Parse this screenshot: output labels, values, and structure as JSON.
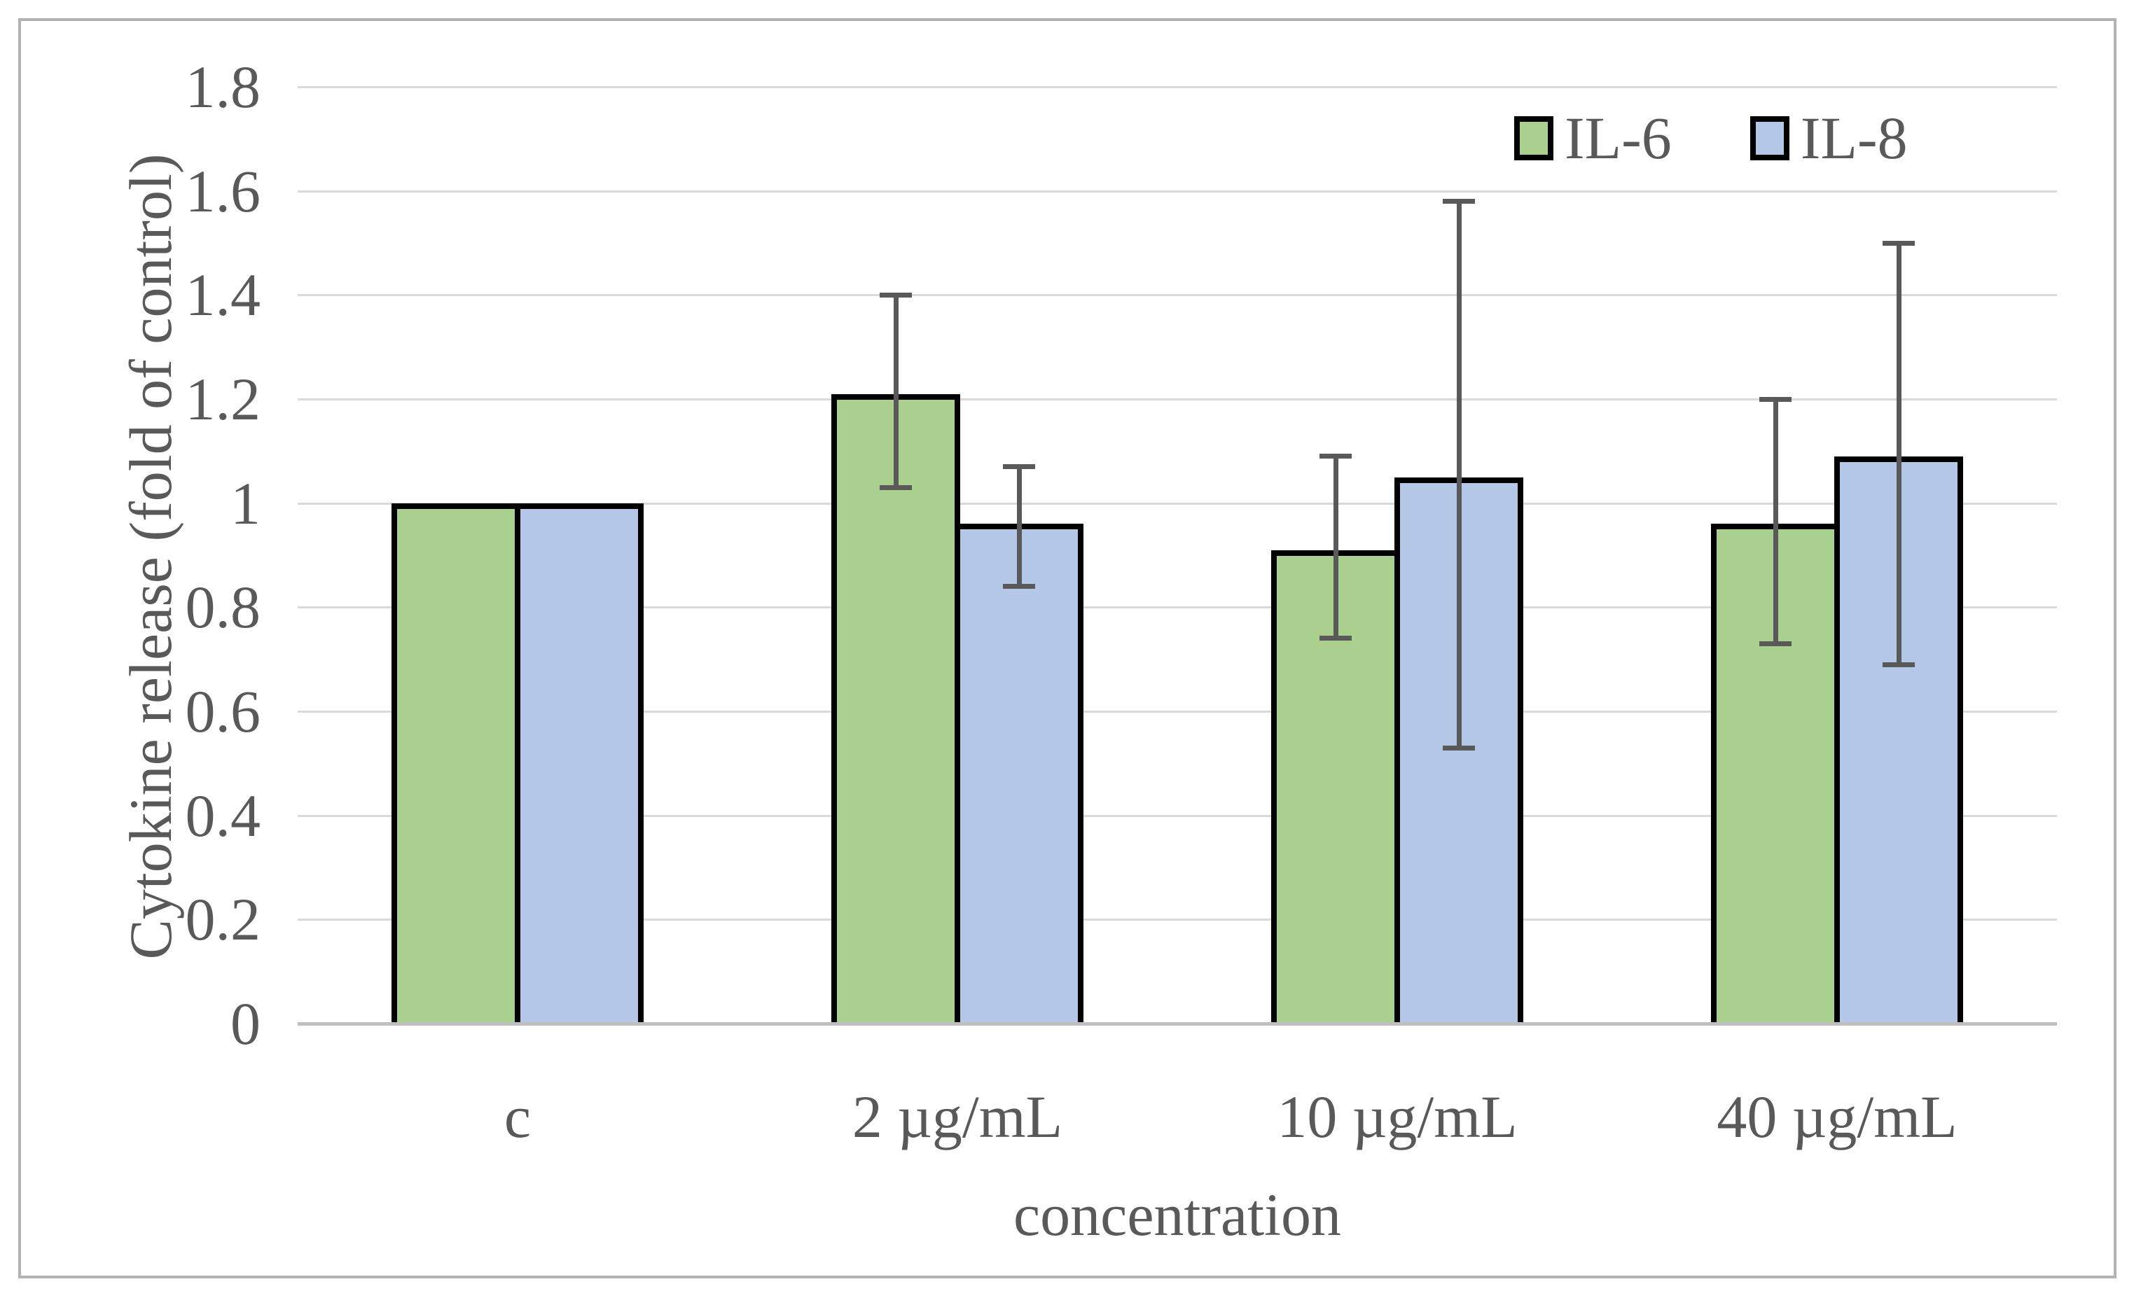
{
  "figure": {
    "background_color": "#ffffff",
    "border_color": "#b3b3b3"
  },
  "chart_data": {
    "type": "bar",
    "title": "",
    "xlabel": "concentration",
    "ylabel": "Cytokine release (fold of control)",
    "categories": [
      "c",
      "2 µg/mL",
      "10 µg/mL",
      "40 µg/mL"
    ],
    "series": [
      {
        "name": "IL-6",
        "color": "#a9d08e",
        "values": [
          1.0,
          1.21,
          0.91,
          0.96
        ],
        "error_low": [
          null,
          1.03,
          0.74,
          0.73
        ],
        "error_high": [
          null,
          1.4,
          1.09,
          1.2
        ]
      },
      {
        "name": "IL-8",
        "color": "#b4c7e7",
        "values": [
          1.0,
          0.96,
          1.05,
          1.09
        ],
        "error_low": [
          null,
          0.84,
          0.53,
          0.69
        ],
        "error_high": [
          null,
          1.07,
          1.58,
          1.5
        ]
      }
    ],
    "ylim": [
      0,
      1.8
    ],
    "y_ticks": [
      "0",
      "0.2",
      "0.4",
      "0.6",
      "0.8",
      "1",
      "1.2",
      "1.4",
      "1.6",
      "1.8"
    ],
    "grid": true,
    "legend_position": "top-right",
    "bar_outline_color": "#000000",
    "error_bar_color": "#595959",
    "gridline_color": "#d9d9d9",
    "axis_line_color": "#bfbfbf",
    "text_color": "#595959"
  }
}
